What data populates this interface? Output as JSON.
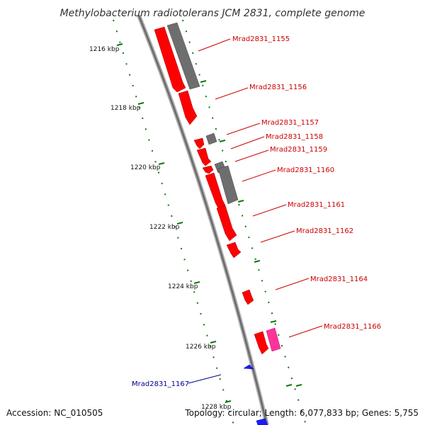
{
  "title": "Methylobacterium radiotolerans JCM 2831, complete genome",
  "accession": "Accession: NC_010505",
  "topology": "Topology: circular; Length: 6,077,833 bp; Genes: 5,755",
  "colors": {
    "backbone": "#8c8c8c",
    "cds": "#ff0000",
    "other_feature": "#707070",
    "pink_feature": "#ff1493",
    "blue_feature": "#0000ee",
    "tick": "#0a7a0a",
    "label_red": "#cc0000",
    "label_blue": "#00008b"
  },
  "ticks": [
    {
      "label": "1216 kbp"
    },
    {
      "label": "1218 kbp"
    },
    {
      "label": "1220 kbp"
    },
    {
      "label": "1222 kbp"
    },
    {
      "label": "1224 kbp"
    },
    {
      "label": "1226 kbp"
    },
    {
      "label": "1228 kbp"
    }
  ],
  "genes": [
    {
      "label": "Mrad2831_1155",
      "color": "red"
    },
    {
      "label": "Mrad2831_1156",
      "color": "red"
    },
    {
      "label": "Mrad2831_1157",
      "color": "red"
    },
    {
      "label": "Mrad2831_1158",
      "color": "red"
    },
    {
      "label": "Mrad2831_1159",
      "color": "red"
    },
    {
      "label": "Mrad2831_1160",
      "color": "red"
    },
    {
      "label": "Mrad2831_1161",
      "color": "red"
    },
    {
      "label": "Mrad2831_1162",
      "color": "red"
    },
    {
      "label": "Mrad2831_1164",
      "color": "red"
    },
    {
      "label": "Mrad2831_1166",
      "color": "red"
    },
    {
      "label": "Mrad2831_1167",
      "color": "blue"
    }
  ]
}
